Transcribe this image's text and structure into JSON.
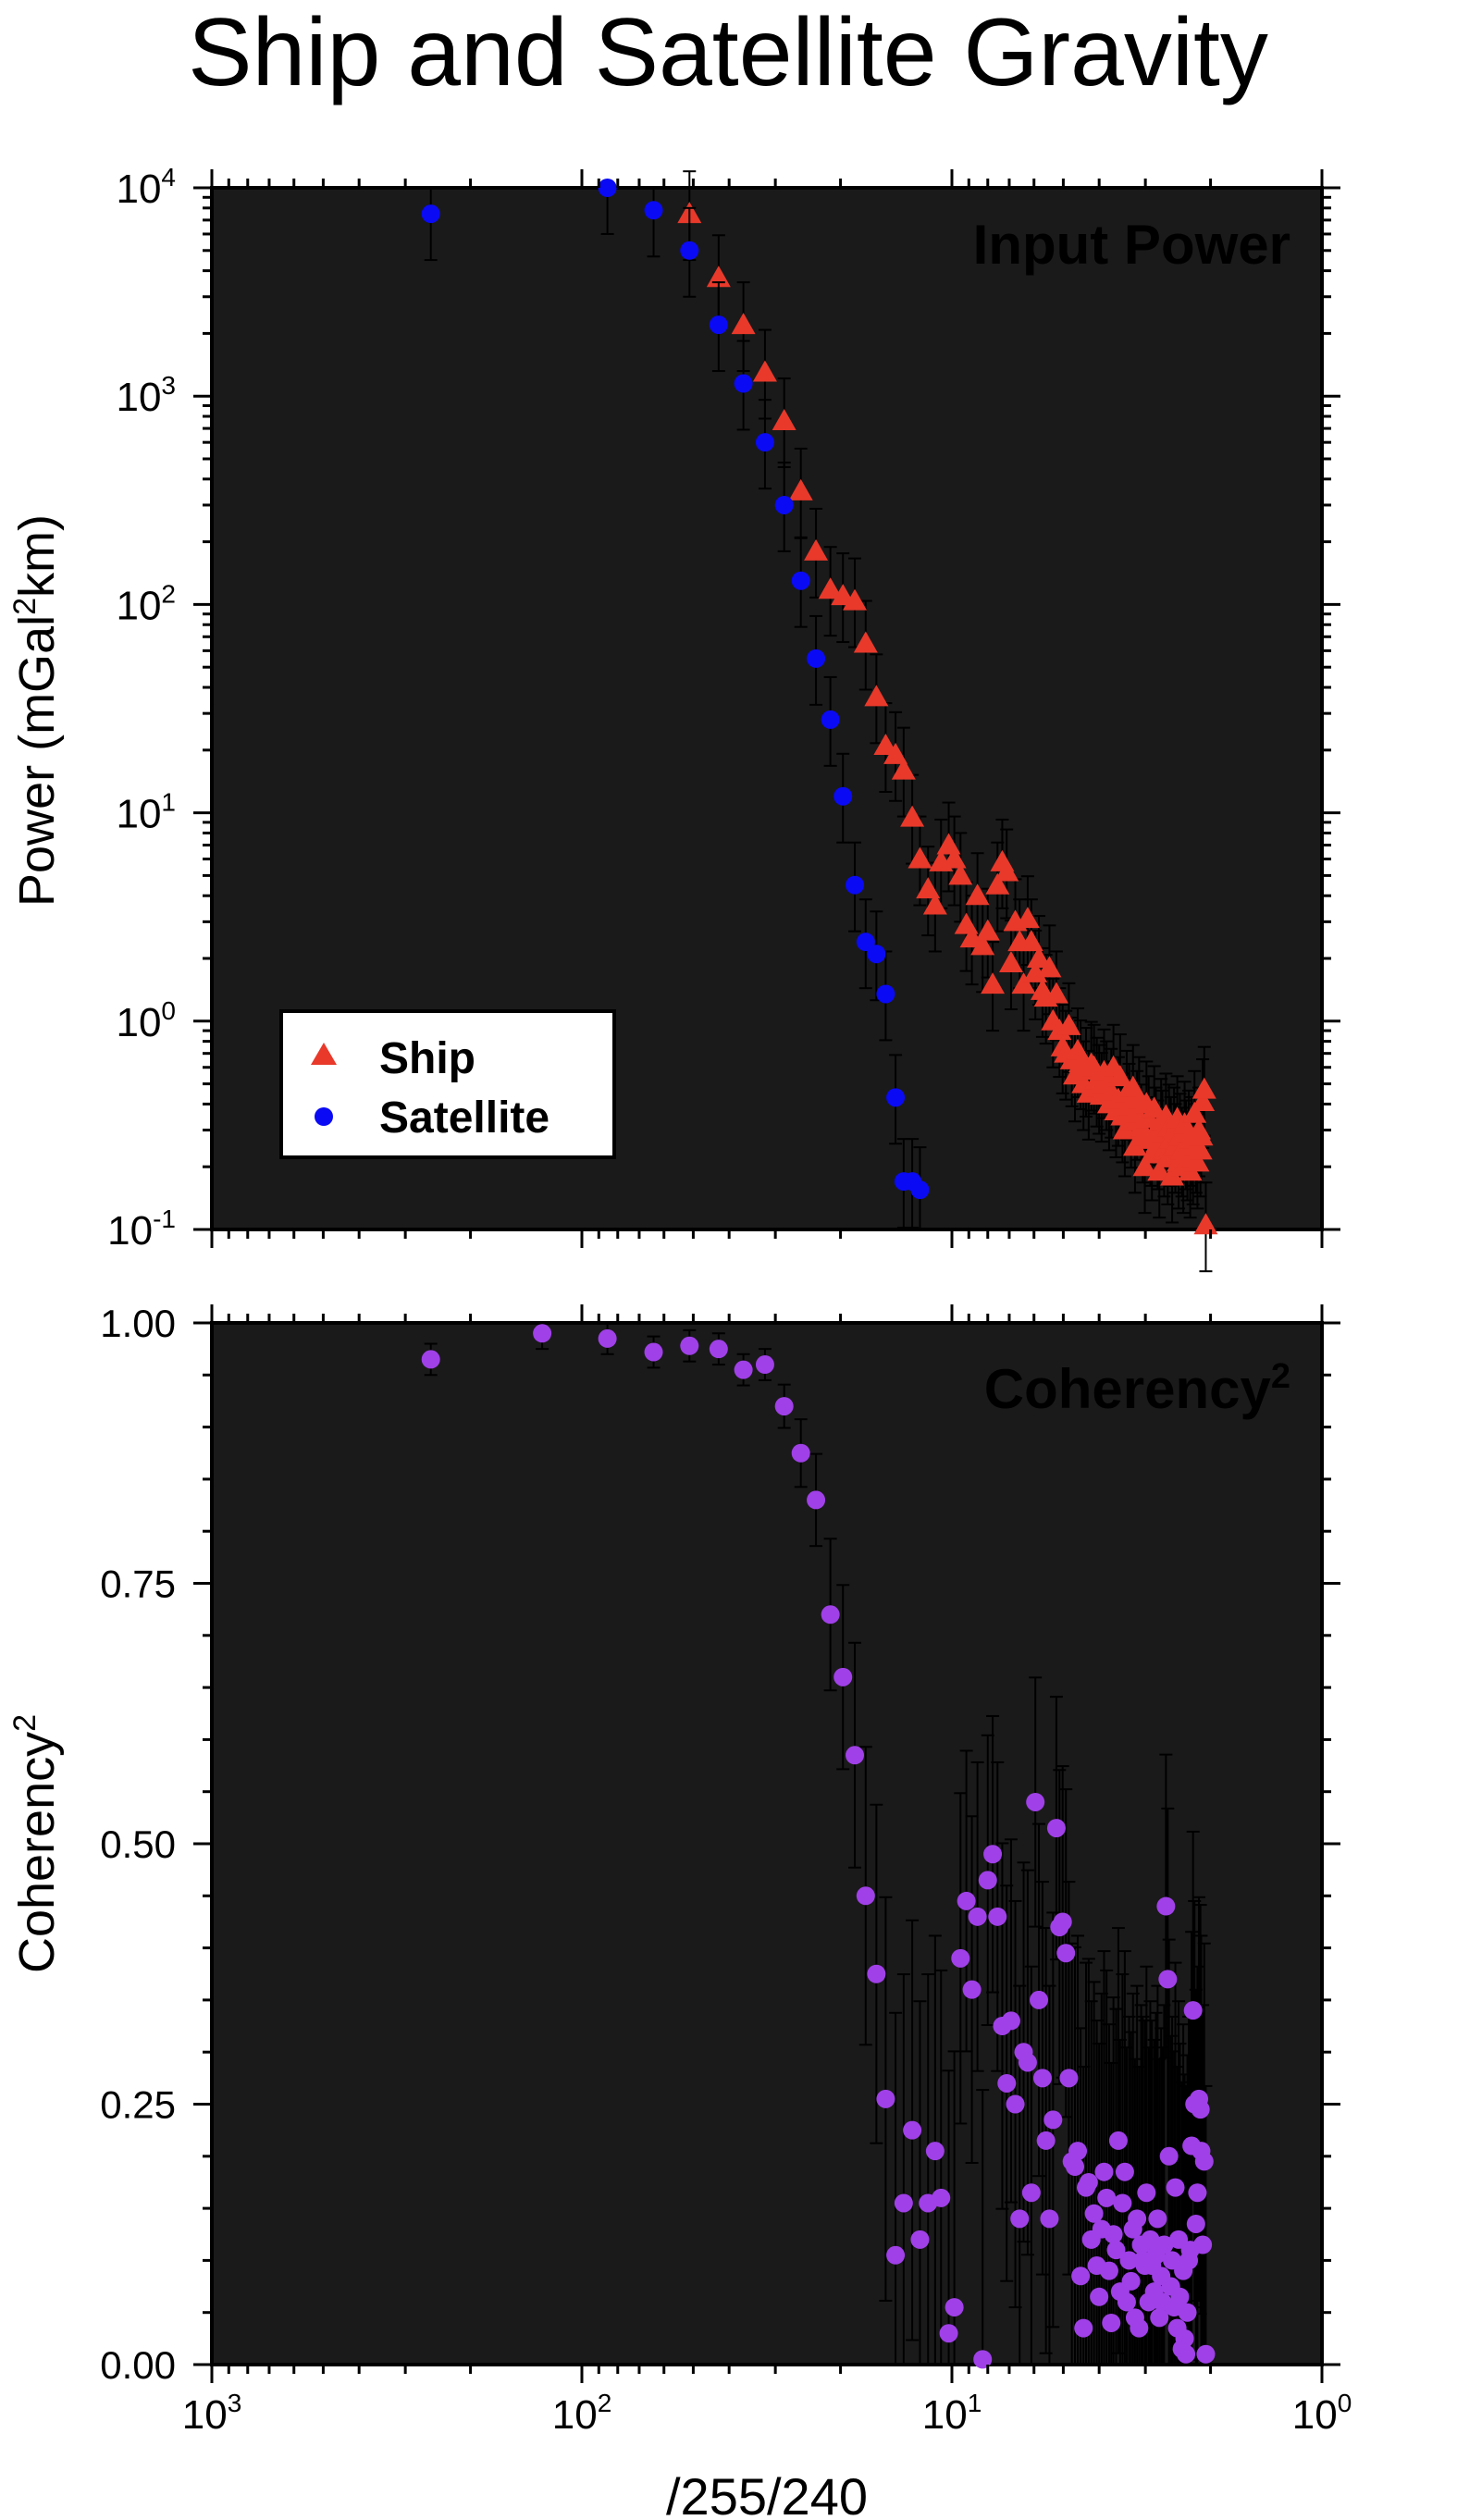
{
  "title": "Ship and Satellite Gravity",
  "colors": {
    "panel_bg": "#1a1a1a",
    "ship": "#e8392b",
    "satellite": "#0a0af5",
    "coherency": "#a040e8",
    "errorbar": "#000000"
  },
  "chart_data": [
    {
      "type": "scatter",
      "panel": "power",
      "panel_label": "Input Power",
      "xscale": "log",
      "yscale": "log",
      "x_reversed": true,
      "xlim": [
        1000,
        1
      ],
      "ylim": [
        0.1,
        10000
      ],
      "xlabel": "",
      "ylabel": "Power (mGal²km)",
      "ylabel_parts": {
        "pre": "Power (mGal",
        "sup": "2",
        "post": "km)"
      },
      "y_ticks": [
        {
          "value": 0.1,
          "base": "10",
          "exp": "-1"
        },
        {
          "value": 1,
          "base": "10",
          "exp": "0"
        },
        {
          "value": 10,
          "base": "10",
          "exp": "1"
        },
        {
          "value": 100,
          "base": "10",
          "exp": "2"
        },
        {
          "value": 1000,
          "base": "10",
          "exp": "3"
        },
        {
          "value": 10000,
          "base": "10",
          "exp": "4"
        }
      ],
      "legend": {
        "position": "bottom-left",
        "entries": [
          {
            "label": "Ship",
            "symbol": "triangle"
          },
          {
            "label": "Satellite",
            "symbol": "circle"
          }
        ]
      },
      "series": [
        {
          "name": "Ship",
          "symbol": "triangle",
          "x": [
            51.2,
            42.7,
            36.6,
            32.0,
            28.4,
            25.6,
            23.3,
            21.3,
            19.7,
            18.3,
            17.1,
            16.0,
            15.1,
            14.2,
            13.5,
            12.8,
            12.2,
            11.6,
            11.1,
            10.7,
            10.2,
            9.85,
            9.48,
            9.14,
            8.83,
            8.53,
            8.26,
            8.0,
            7.76,
            7.53,
            7.31,
            7.11,
            6.92,
            6.74,
            6.56,
            6.4,
            6.24,
            6.1,
            5.95,
            5.82,
            5.69,
            5.57,
            5.45,
            5.33,
            5.22,
            5.12,
            5.02,
            4.92,
            4.83,
            4.74,
            4.65,
            4.57,
            4.49,
            4.41,
            4.34,
            4.27,
            4.2,
            4.13,
            4.06,
            4.0,
            3.94,
            3.88,
            3.82,
            3.76,
            3.71,
            3.66,
            3.6,
            3.55,
            3.51,
            3.46,
            3.41,
            3.37,
            3.32,
            3.28,
            3.24,
            3.2,
            3.16,
            3.12,
            3.08,
            3.05,
            3.01,
            2.98,
            2.94,
            2.91,
            2.88,
            2.84,
            2.81,
            2.78,
            2.75,
            2.72,
            2.7,
            2.67,
            2.64,
            2.61,
            2.59,
            2.56,
            2.54,
            2.51,
            2.49,
            2.46,
            2.44,
            2.42,
            2.39,
            2.37,
            2.35,
            2.33,
            2.31,
            2.29,
            2.27,
            2.25,
            2.23,
            2.21,
            2.19,
            2.17,
            2.15,
            2.13,
            2.12,
            2.1,
            2.08,
            2.06
          ],
          "y": [
            7500,
            3700,
            2200,
            1300,
            760,
            350,
            180,
            118,
            110,
            104,
            65,
            36,
            21,
            19,
            16,
            9.5,
            6.0,
            4.3,
            3.6,
            5.8,
            7.0,
            6.0,
            5.0,
            2.9,
            2.5,
            4.0,
            2.3,
            2.7,
            1.5,
            4.5,
            5.8,
            5.2,
            1.9,
            3.0,
            2.4,
            1.5,
            3.1,
            2.4,
            1.7,
            2.0,
            1.4,
            1.3,
            1.8,
            1.0,
            1.35,
            0.9,
            0.75,
            0.7,
            0.95,
            0.65,
            0.55,
            0.72,
            0.63,
            0.5,
            0.58,
            0.45,
            0.62,
            0.6,
            0.52,
            0.48,
            0.44,
            0.57,
            0.5,
            0.4,
            0.46,
            0.6,
            0.37,
            0.42,
            0.54,
            0.35,
            0.3,
            0.45,
            0.39,
            0.33,
            0.48,
            0.25,
            0.36,
            0.42,
            0.31,
            0.28,
            0.2,
            0.4,
            0.34,
            0.27,
            0.23,
            0.38,
            0.3,
            0.26,
            0.19,
            0.33,
            0.29,
            0.24,
            0.35,
            0.22,
            0.31,
            0.27,
            0.18,
            0.3,
            0.25,
            0.34,
            0.21,
            0.28,
            0.24,
            0.2,
            0.32,
            0.26,
            0.23,
            0.29,
            0.19,
            0.27,
            0.22,
            0.36,
            0.25,
            0.21,
            0.3,
            0.24,
            0.28,
            0.41,
            0.47,
            0.105
          ]
        },
        {
          "name": "Satellite",
          "symbol": "circle",
          "x": [
            256,
            85.3,
            64.0,
            51.2,
            42.7,
            36.6,
            32.0,
            28.4,
            25.6,
            23.3,
            21.3,
            19.7,
            18.3,
            17.1,
            16.0,
            15.1,
            14.2,
            13.5,
            12.8,
            12.2
          ],
          "y": [
            7500,
            10000,
            7800,
            5000,
            2200,
            1150,
            600,
            300,
            130,
            55,
            28,
            12,
            4.5,
            2.4,
            2.1,
            1.35,
            0.43,
            0.17,
            0.17,
            0.155
          ]
        }
      ]
    },
    {
      "type": "scatter",
      "panel": "coherency",
      "panel_label": "Coherency²",
      "panel_label_parts": {
        "pre": "Coherency",
        "sup": "2"
      },
      "xscale": "log",
      "yscale": "linear",
      "x_reversed": true,
      "xlim": [
        1000,
        1
      ],
      "ylim": [
        0,
        1
      ],
      "xlabel": "/255/240",
      "ylabel": "Coherency²",
      "ylabel_parts": {
        "pre": "Coherency",
        "sup": "2"
      },
      "y_ticks": [
        "0.00",
        "0.25",
        "0.50",
        "0.75",
        "1.00"
      ],
      "x_ticks": [
        {
          "value": 1000,
          "base": "10",
          "exp": "3"
        },
        {
          "value": 100,
          "base": "10",
          "exp": "2"
        },
        {
          "value": 10,
          "base": "10",
          "exp": "1"
        },
        {
          "value": 1,
          "base": "10",
          "exp": "0"
        }
      ],
      "series": [
        {
          "name": "Coherency",
          "symbol": "circle",
          "x": [
            256,
            128,
            85.3,
            64.0,
            51.2,
            42.7,
            36.6,
            32.0,
            28.4,
            25.6,
            23.3,
            21.3,
            19.7,
            18.3,
            17.1,
            16.0,
            15.1,
            14.2,
            13.5,
            12.8,
            12.2,
            11.6,
            11.1,
            10.7,
            10.2,
            9.85,
            9.48,
            9.14,
            8.83,
            8.53,
            8.26,
            8.0,
            7.76,
            7.53,
            7.31,
            7.11,
            6.92,
            6.74,
            6.56,
            6.4,
            6.24,
            6.1,
            5.95,
            5.82,
            5.69,
            5.57,
            5.45,
            5.33,
            5.22,
            5.12,
            5.02,
            4.92,
            4.83,
            4.74,
            4.65,
            4.57,
            4.49,
            4.41,
            4.34,
            4.27,
            4.2,
            4.13,
            4.06,
            4.0,
            3.94,
            3.88,
            3.82,
            3.76,
            3.71,
            3.66,
            3.6,
            3.55,
            3.51,
            3.46,
            3.41,
            3.37,
            3.32,
            3.28,
            3.24,
            3.2,
            3.16,
            3.12,
            3.08,
            3.05,
            3.01,
            2.98,
            2.94,
            2.91,
            2.88,
            2.84,
            2.81,
            2.78,
            2.75,
            2.72,
            2.7,
            2.67,
            2.64,
            2.61,
            2.59,
            2.56,
            2.54,
            2.51,
            2.49,
            2.46,
            2.44,
            2.42,
            2.39,
            2.37,
            2.35,
            2.33,
            2.31,
            2.29,
            2.27,
            2.25,
            2.23,
            2.21,
            2.19,
            2.17,
            2.15,
            2.13,
            2.12,
            2.1,
            2.08,
            2.06
          ],
          "y": [
            0.965,
            0.99,
            0.985,
            0.972,
            0.978,
            0.975,
            0.955,
            0.96,
            0.92,
            0.875,
            0.83,
            0.72,
            0.66,
            0.585,
            0.45,
            0.375,
            0.255,
            0.105,
            0.155,
            0.225,
            0.12,
            0.155,
            0.205,
            0.16,
            0.03,
            0.055,
            0.39,
            0.445,
            0.36,
            0.43,
            0.005,
            0.465,
            0.49,
            0.43,
            0.325,
            0.27,
            0.33,
            0.25,
            0.14,
            0.3,
            0.29,
            0.165,
            0.54,
            0.35,
            0.275,
            0.215,
            0.14,
            0.235,
            0.515,
            0.42,
            0.425,
            0.395,
            0.275,
            0.195,
            0.19,
            0.205,
            0.085,
            0.035,
            0.17,
            0.175,
            0.12,
            0.145,
            0.095,
            0.065,
            0.13,
            0.185,
            0.16,
            0.09,
            0.04,
            0.125,
            0.11,
            0.215,
            0.07,
            0.155,
            0.185,
            0.06,
            0.1,
            0.08,
            0.13,
            0.045,
            0.14,
            0.035,
            0.115,
            0.1,
            0.095,
            0.165,
            0.06,
            0.12,
            0.095,
            0.07,
            0.105,
            0.14,
            0.045,
            0.085,
            0.06,
            0.115,
            0.44,
            0.37,
            0.2,
            0.075,
            0.1,
            0.055,
            0.17,
            0.035,
            0.12,
            0.065,
            0.015,
            0.09,
            0.025,
            0.01,
            0.05,
            0.1,
            0.11,
            0.21,
            0.34,
            0.25,
            0.135,
            0.165,
            0.255,
            0.245,
            0.205,
            0.115,
            0.195,
            0.01
          ]
        }
      ]
    }
  ]
}
